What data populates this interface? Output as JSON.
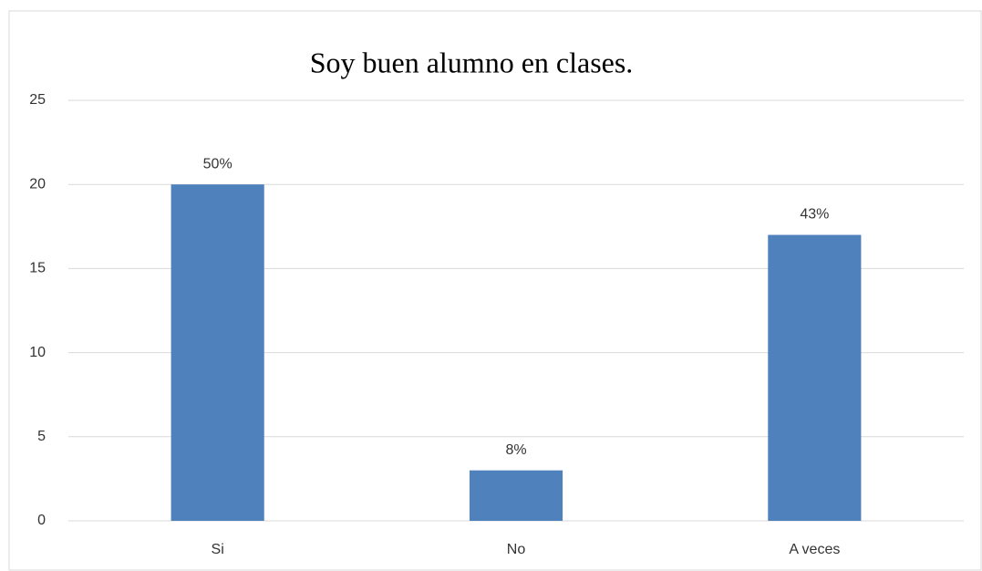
{
  "chart_data": {
    "type": "bar",
    "title": "Soy buen alumno en clases.",
    "categories": [
      "Si",
      "No",
      "A veces"
    ],
    "values": [
      20,
      3,
      17
    ],
    "value_labels": [
      "50%",
      "8%",
      "43%"
    ],
    "color": "#4f81bd",
    "ylim": [
      0,
      25
    ],
    "yticks": [
      0,
      5,
      10,
      15,
      20,
      25
    ],
    "grid": true
  }
}
